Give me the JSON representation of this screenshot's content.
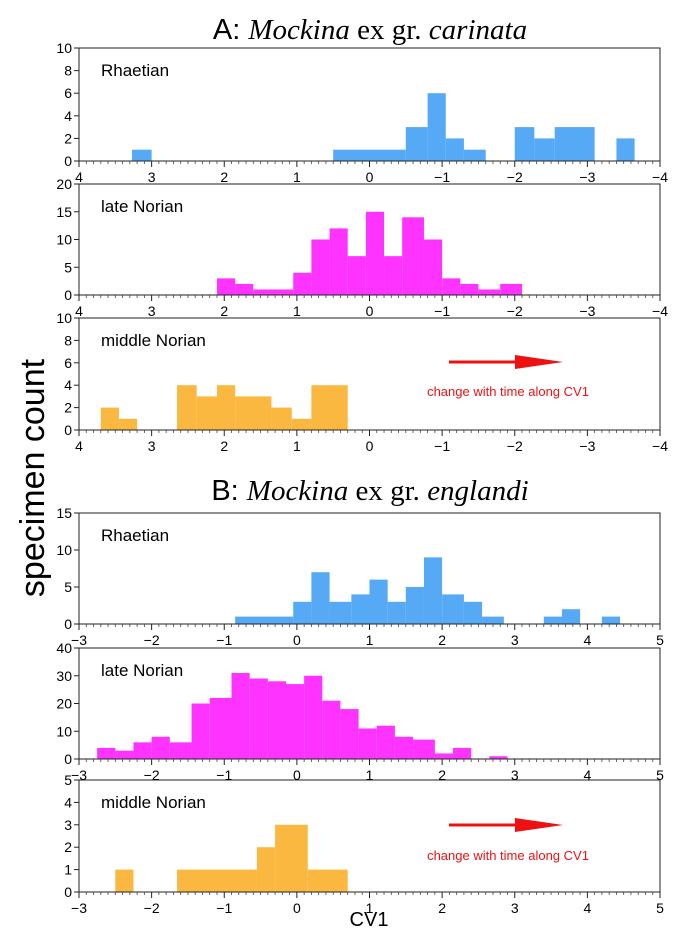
{
  "figure": {
    "ylabel": "specimen count",
    "xlabel": "CV1",
    "arrow_label": "change with time along CV1",
    "colors": {
      "Rhaetian": "#56aaf5",
      "late Norian": "#ff33ff",
      "middle Norian": "#fbb841",
      "arrow": "#ee1111"
    }
  },
  "chart_data": [
    {
      "type": "histogram",
      "group": "A",
      "title": {
        "prefix": "A: ",
        "genus": "Mockina",
        "middle": " ex gr. ",
        "species": "carinata"
      },
      "x_axis": {
        "range": [
          4,
          -4
        ],
        "reversed": true,
        "ticks": [
          4,
          3,
          2,
          1,
          0,
          -1,
          -2,
          -3,
          -4
        ],
        "tick_labels": [
          "4",
          "3",
          "2",
          "1",
          "0",
          "−1",
          "−2",
          "−3",
          "−4"
        ]
      },
      "panels": [
        {
          "name": "Rhaetian",
          "ylim": [
            0,
            10
          ],
          "yticks": [
            0,
            2,
            4,
            6,
            8,
            10
          ],
          "color": "#56aaf5",
          "bars": [
            {
              "x0": 3.27,
              "x1": 3.0,
              "count": 1
            },
            {
              "x0": 0.5,
              "x1": -0.5,
              "count": 1
            },
            {
              "x0": -0.5,
              "x1": -0.8,
              "count": 3
            },
            {
              "x0": -0.8,
              "x1": -1.05,
              "count": 6
            },
            {
              "x0": -1.05,
              "x1": -1.3,
              "count": 2
            },
            {
              "x0": -1.3,
              "x1": -1.6,
              "count": 1
            },
            {
              "x0": -2.0,
              "x1": -2.27,
              "count": 3
            },
            {
              "x0": -2.27,
              "x1": -2.55,
              "count": 2
            },
            {
              "x0": -2.55,
              "x1": -3.1,
              "count": 3
            },
            {
              "x0": -3.4,
              "x1": -3.65,
              "count": 2
            }
          ]
        },
        {
          "name": "late Norian",
          "ylim": [
            0,
            20
          ],
          "yticks": [
            0,
            5,
            10,
            15,
            20
          ],
          "color": "#ff33ff",
          "bars": [
            {
              "x0": 2.1,
              "x1": 1.85,
              "count": 3
            },
            {
              "x0": 1.85,
              "x1": 1.6,
              "count": 2
            },
            {
              "x0": 1.6,
              "x1": 1.05,
              "count": 1
            },
            {
              "x0": 1.05,
              "x1": 0.8,
              "count": 4
            },
            {
              "x0": 0.8,
              "x1": 0.55,
              "count": 10
            },
            {
              "x0": 0.55,
              "x1": 0.3,
              "count": 12
            },
            {
              "x0": 0.3,
              "x1": 0.05,
              "count": 7
            },
            {
              "x0": 0.05,
              "x1": -0.2,
              "count": 15
            },
            {
              "x0": -0.2,
              "x1": -0.45,
              "count": 7
            },
            {
              "x0": -0.45,
              "x1": -0.75,
              "count": 14
            },
            {
              "x0": -0.75,
              "x1": -1.0,
              "count": 10
            },
            {
              "x0": -1.0,
              "x1": -1.25,
              "count": 3
            },
            {
              "x0": -1.25,
              "x1": -1.5,
              "count": 2
            },
            {
              "x0": -1.5,
              "x1": -1.8,
              "count": 1
            },
            {
              "x0": -1.8,
              "x1": -2.1,
              "count": 2
            }
          ]
        },
        {
          "name": "middle Norian",
          "ylim": [
            0,
            10
          ],
          "yticks": [
            0,
            2,
            4,
            6,
            8,
            10
          ],
          "color": "#fbb841",
          "arrow": true,
          "bars": [
            {
              "x0": 3.7,
              "x1": 3.45,
              "count": 2
            },
            {
              "x0": 3.45,
              "x1": 3.2,
              "count": 1
            },
            {
              "x0": 2.65,
              "x1": 2.38,
              "count": 4
            },
            {
              "x0": 2.38,
              "x1": 2.1,
              "count": 3
            },
            {
              "x0": 2.1,
              "x1": 1.85,
              "count": 4
            },
            {
              "x0": 1.85,
              "x1": 1.35,
              "count": 3
            },
            {
              "x0": 1.35,
              "x1": 1.07,
              "count": 2
            },
            {
              "x0": 1.07,
              "x1": 0.8,
              "count": 1
            },
            {
              "x0": 0.8,
              "x1": 0.3,
              "count": 4
            }
          ]
        }
      ]
    },
    {
      "type": "histogram",
      "group": "B",
      "title": {
        "prefix": "B: ",
        "genus": "Mockina",
        "middle": " ex gr. ",
        "species": "englandi"
      },
      "x_axis": {
        "range": [
          -3,
          5
        ],
        "reversed": false,
        "ticks": [
          -3,
          -2,
          -1,
          0,
          1,
          2,
          3,
          4,
          5
        ],
        "tick_labels": [
          "−3",
          "−2",
          "−1",
          "0",
          "1",
          "2",
          "3",
          "4",
          "5"
        ]
      },
      "panels": [
        {
          "name": "Rhaetian",
          "ylim": [
            0,
            15
          ],
          "yticks": [
            0,
            5,
            10,
            15
          ],
          "color": "#56aaf5",
          "bars": [
            {
              "x0": -0.85,
              "x1": -0.05,
              "count": 1
            },
            {
              "x0": -0.05,
              "x1": 0.2,
              "count": 3
            },
            {
              "x0": 0.2,
              "x1": 0.45,
              "count": 7
            },
            {
              "x0": 0.45,
              "x1": 0.75,
              "count": 3
            },
            {
              "x0": 0.75,
              "x1": 1.0,
              "count": 4
            },
            {
              "x0": 1.0,
              "x1": 1.25,
              "count": 6
            },
            {
              "x0": 1.25,
              "x1": 1.5,
              "count": 3
            },
            {
              "x0": 1.5,
              "x1": 1.75,
              "count": 5
            },
            {
              "x0": 1.75,
              "x1": 2.0,
              "count": 9
            },
            {
              "x0": 2.0,
              "x1": 2.3,
              "count": 4
            },
            {
              "x0": 2.3,
              "x1": 2.55,
              "count": 3
            },
            {
              "x0": 2.55,
              "x1": 2.85,
              "count": 1
            },
            {
              "x0": 3.4,
              "x1": 3.65,
              "count": 1
            },
            {
              "x0": 3.65,
              "x1": 3.9,
              "count": 2
            },
            {
              "x0": 4.2,
              "x1": 4.45,
              "count": 1
            }
          ]
        },
        {
          "name": "late Norian",
          "ylim": [
            0,
            40
          ],
          "yticks": [
            0,
            10,
            20,
            30,
            40
          ],
          "color": "#ff33ff",
          "bars": [
            {
              "x0": -2.75,
              "x1": -2.5,
              "count": 4
            },
            {
              "x0": -2.5,
              "x1": -2.25,
              "count": 3
            },
            {
              "x0": -2.25,
              "x1": -2.0,
              "count": 6
            },
            {
              "x0": -2.0,
              "x1": -1.75,
              "count": 8
            },
            {
              "x0": -1.75,
              "x1": -1.45,
              "count": 6
            },
            {
              "x0": -1.45,
              "x1": -1.2,
              "count": 20
            },
            {
              "x0": -1.2,
              "x1": -0.9,
              "count": 22
            },
            {
              "x0": -0.9,
              "x1": -0.65,
              "count": 31
            },
            {
              "x0": -0.65,
              "x1": -0.4,
              "count": 29
            },
            {
              "x0": -0.4,
              "x1": -0.15,
              "count": 28
            },
            {
              "x0": -0.15,
              "x1": 0.1,
              "count": 27
            },
            {
              "x0": 0.1,
              "x1": 0.35,
              "count": 30
            },
            {
              "x0": 0.35,
              "x1": 0.6,
              "count": 21
            },
            {
              "x0": 0.6,
              "x1": 0.85,
              "count": 18
            },
            {
              "x0": 0.85,
              "x1": 1.1,
              "count": 11
            },
            {
              "x0": 1.1,
              "x1": 1.35,
              "count": 12
            },
            {
              "x0": 1.35,
              "x1": 1.6,
              "count": 8
            },
            {
              "x0": 1.6,
              "x1": 1.9,
              "count": 7
            },
            {
              "x0": 1.9,
              "x1": 2.15,
              "count": 2
            },
            {
              "x0": 2.15,
              "x1": 2.4,
              "count": 4
            },
            {
              "x0": 2.65,
              "x1": 2.9,
              "count": 1
            }
          ]
        },
        {
          "name": "middle Norian",
          "ylim": [
            0,
            5
          ],
          "yticks": [
            0,
            1,
            2,
            3,
            4,
            5
          ],
          "color": "#fbb841",
          "arrow": true,
          "bars": [
            {
              "x0": -2.5,
              "x1": -2.25,
              "count": 1
            },
            {
              "x0": -1.65,
              "x1": -0.55,
              "count": 1
            },
            {
              "x0": -0.55,
              "x1": -0.3,
              "count": 2
            },
            {
              "x0": -0.3,
              "x1": 0.15,
              "count": 3
            },
            {
              "x0": 0.15,
              "x1": 0.7,
              "count": 1
            }
          ]
        }
      ]
    }
  ]
}
